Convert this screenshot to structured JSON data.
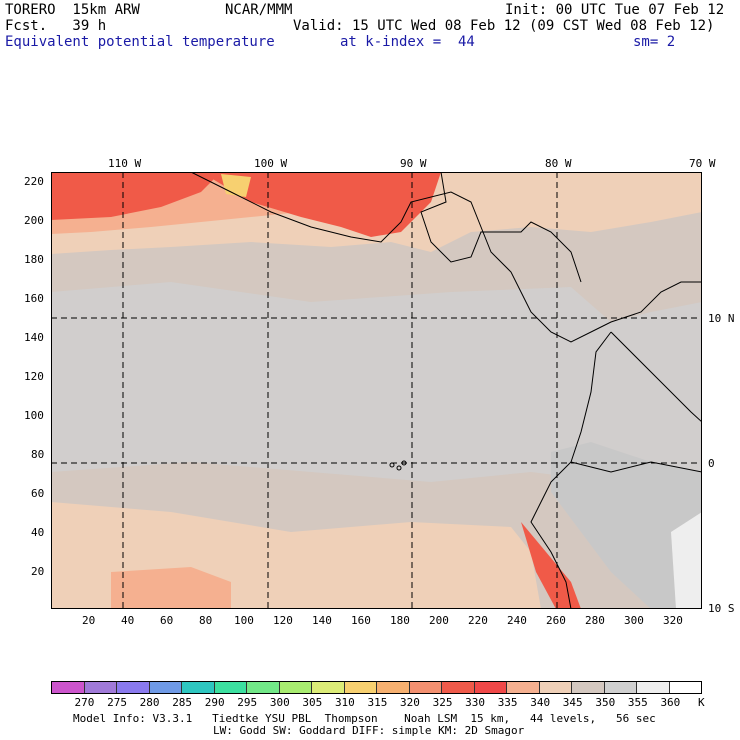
{
  "header": {
    "model": "TORERO  15km ARW",
    "center": "NCAR/MMM",
    "init": "Init: 00 UTC Tue 07 Feb 12",
    "fcst": "Fcst.   39 h",
    "valid": "Valid: 15 UTC Wed 08 Feb 12 (09 CST Wed 08 Feb 12)",
    "field": "Equivalent potential temperature",
    "level": "at k-index =  44",
    "smoothing": "sm= 2"
  },
  "map": {
    "top_labels": [
      "110 W",
      "100 W",
      "90 W",
      "80 W",
      "70 W"
    ],
    "right_labels": [
      "10 N",
      "0",
      "10 S"
    ],
    "y_ticks": [
      "220",
      "200",
      "180",
      "160",
      "140",
      "120",
      "100",
      "80",
      "60",
      "40",
      "20"
    ],
    "x_ticks": [
      "20",
      "40",
      "60",
      "80",
      "100",
      "120",
      "140",
      "160",
      "180",
      "200",
      "220",
      "240",
      "260",
      "280",
      "300",
      "320"
    ]
  },
  "colorbar": {
    "labels": [
      "270",
      "275",
      "280",
      "285",
      "290",
      "295",
      "300",
      "305",
      "310",
      "315",
      "320",
      "325",
      "330",
      "335",
      "340",
      "345",
      "350",
      "355",
      "360"
    ],
    "unit": "K",
    "colors": [
      "#cc55cc",
      "#a07ad8",
      "#8a7aee",
      "#6f9ae6",
      "#2ec6c0",
      "#3ce0a0",
      "#72e888",
      "#a8ec70",
      "#dcec78",
      "#f7d070",
      "#f6b070",
      "#f39070",
      "#ef5a4a",
      "#f04848",
      "#f5b090",
      "#efd0b8",
      "#d4c8c0",
      "#d0d0d0",
      "#eeeeee",
      "#ffffff"
    ]
  },
  "footer": {
    "line1": "Model Info: V3.3.1   Tiedtke YSU PBL  Thompson    Noah LSM  15 km,   44 levels,   56 sec",
    "line2": "LW: Godd SW: Goddard DIFF: simple KM: 2D Smagor"
  }
}
